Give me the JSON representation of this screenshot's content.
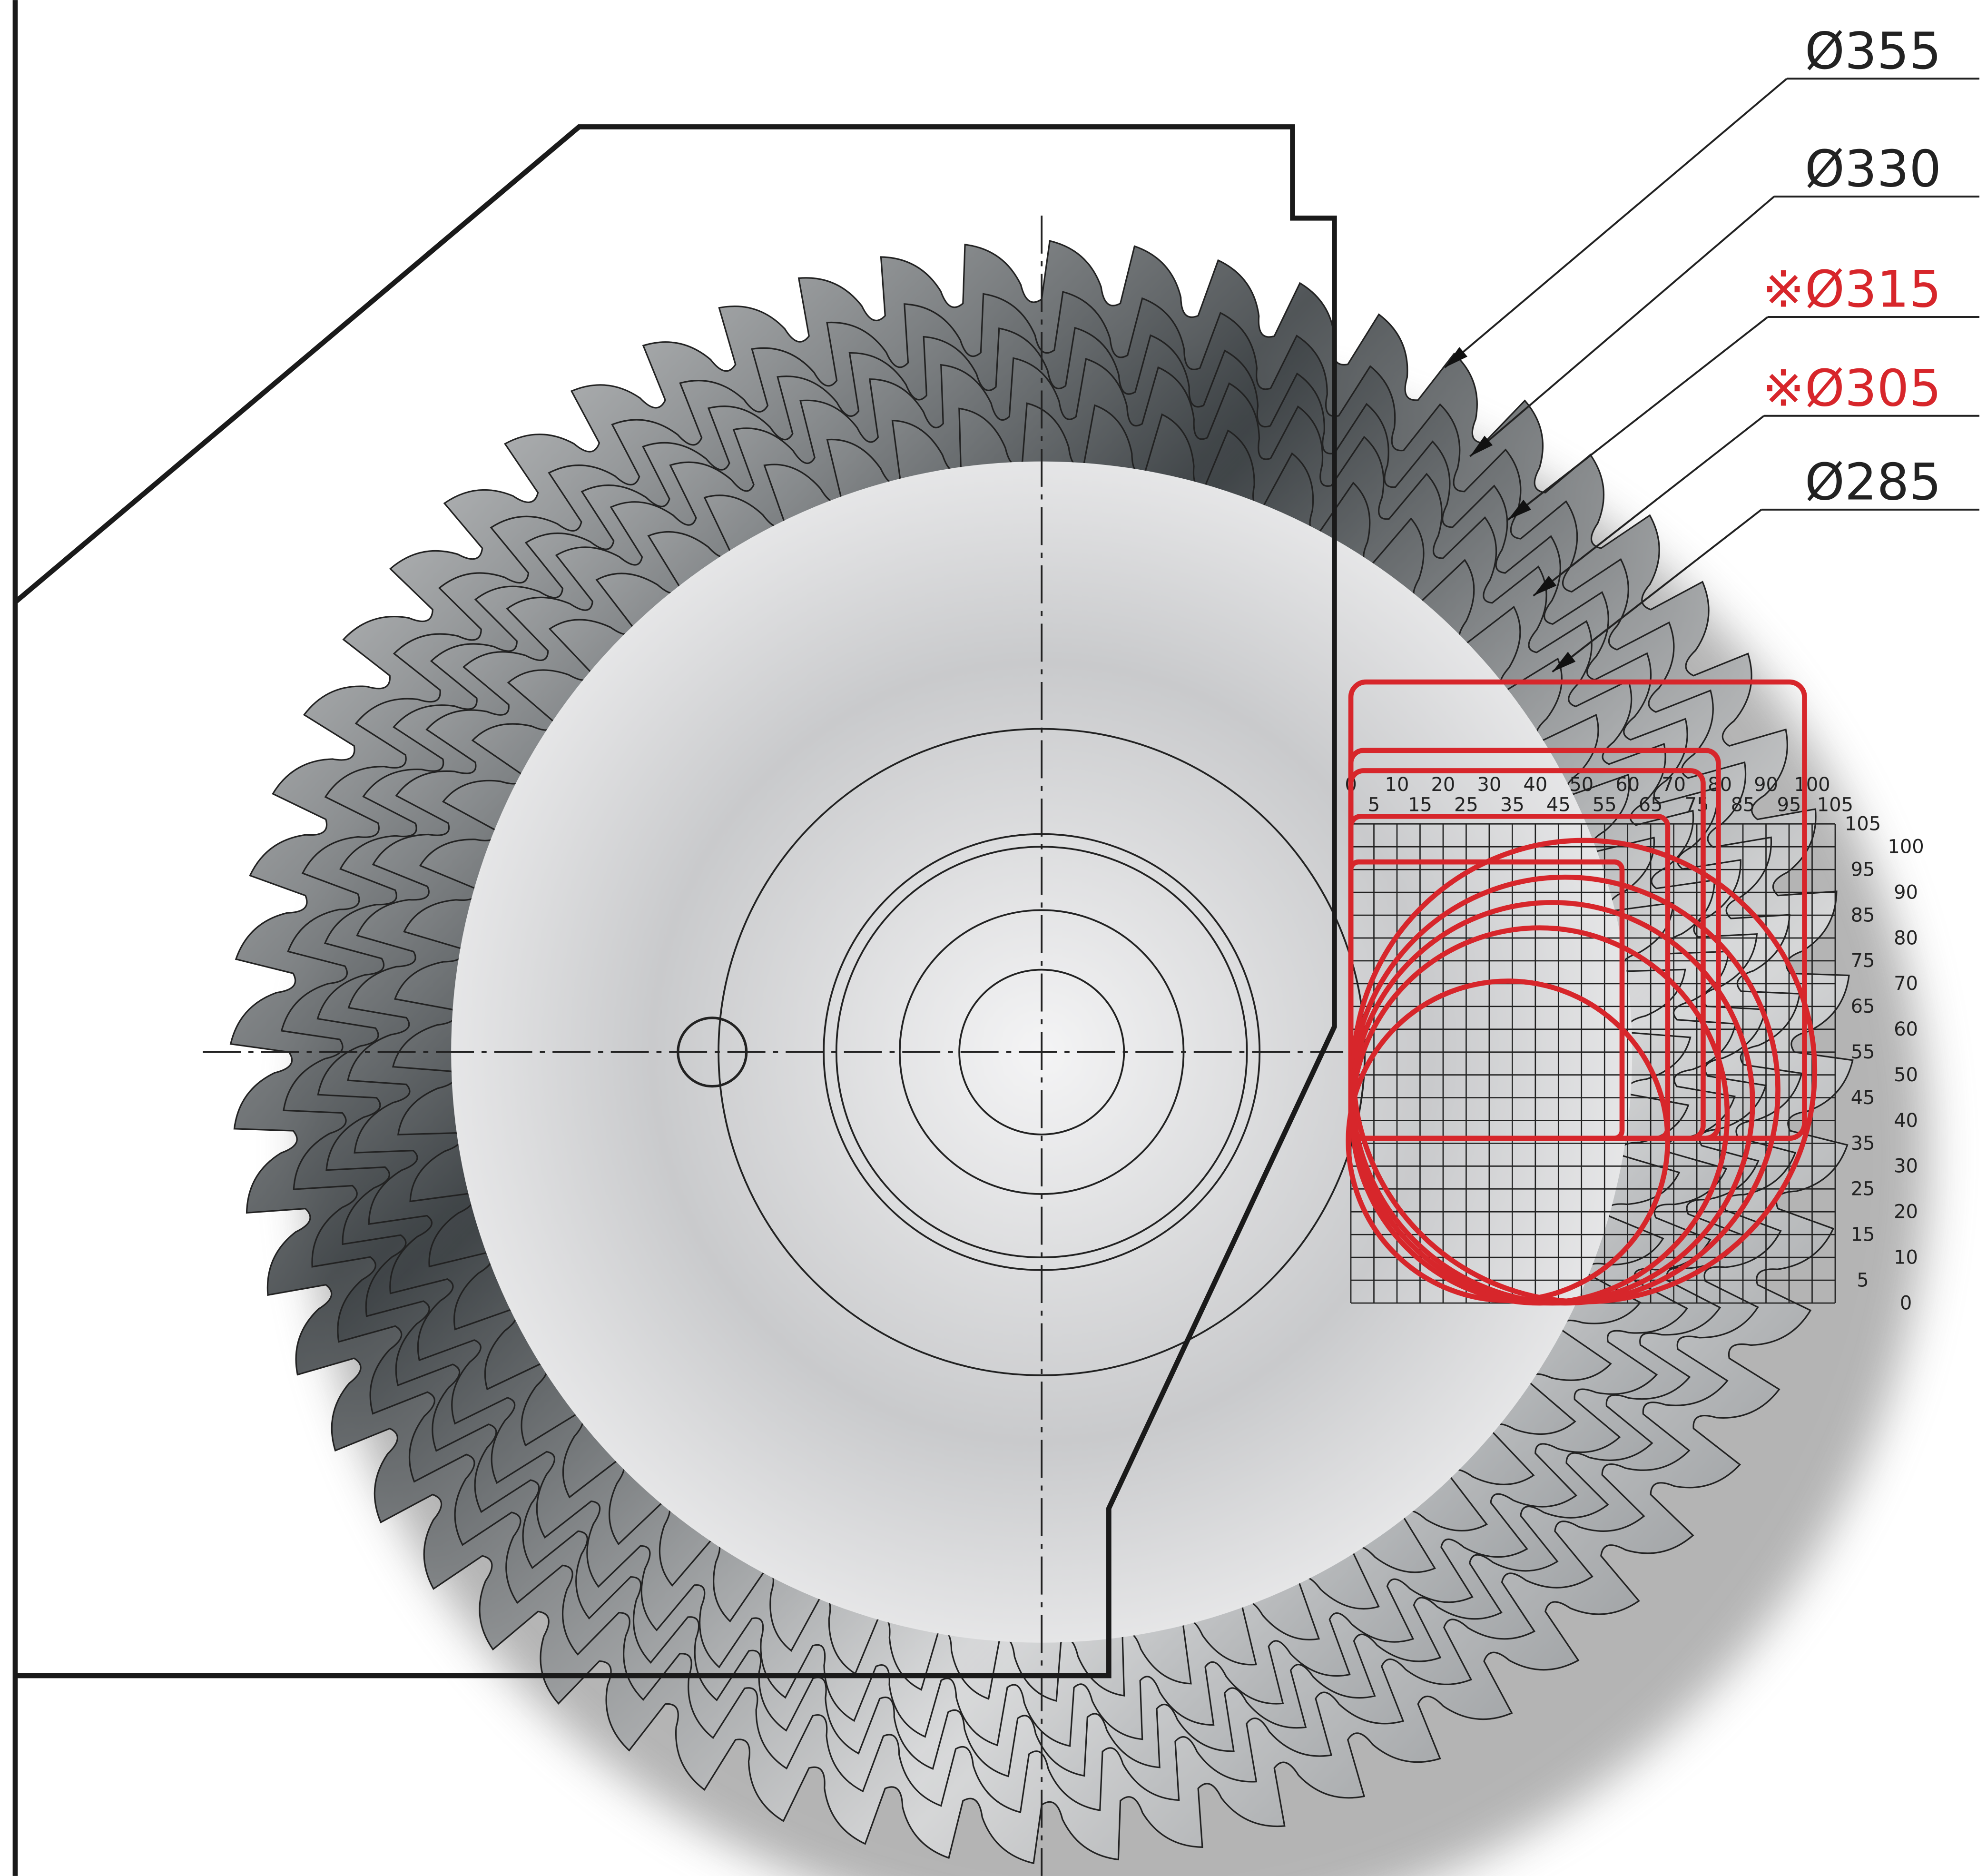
{
  "labels": [
    {
      "text": "Ø355",
      "color": "#222222"
    },
    {
      "text": "Ø330",
      "color": "#222222"
    },
    {
      "text": "※Ø315",
      "color": "#d7262b"
    },
    {
      "text": "※Ø305",
      "color": "#d7262b"
    },
    {
      "text": "Ø285",
      "color": "#222222"
    }
  ],
  "capacity_grid": {
    "x_labels_major": [
      0,
      10,
      20,
      30,
      40,
      50,
      60,
      70,
      80,
      90,
      100
    ],
    "x_labels_minor": [
      5,
      15,
      25,
      35,
      45,
      55,
      65,
      75,
      85,
      95,
      105
    ],
    "y_labels_odd": [
      105,
      95,
      85,
      75,
      65,
      55,
      45,
      35,
      25,
      15,
      5
    ],
    "y_labels_even": [
      100,
      90,
      80,
      70,
      60,
      50,
      40,
      30,
      20,
      10,
      0
    ]
  }
}
